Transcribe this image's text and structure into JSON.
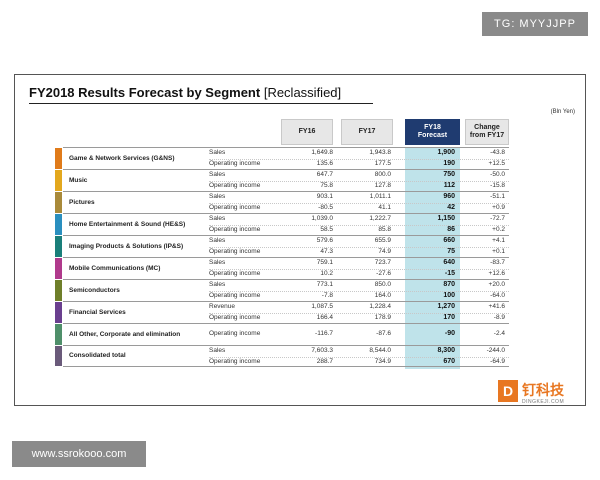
{
  "watermark_top": "TG: MYYJJPP",
  "watermark_bottom": "www.ssrokooo.com",
  "title_main": "FY2018 Results Forecast by Segment",
  "title_sub": "[Reclassified]",
  "unit": "(Bln Yen)",
  "headers": {
    "fy16": "FY16",
    "fy17": "FY17",
    "fy18_line1": "FY18",
    "fy18_line2": "Forecast",
    "change_line1": "Change",
    "change_line2": "from FY17"
  },
  "colors": {
    "forecast_header": "#1f3b70",
    "forecast_column": "#bfe3ea",
    "logo": "#e87722"
  },
  "segments": [
    {
      "name": "Game & Network Services (G&NS)",
      "color": "#e07b1a",
      "rows": [
        {
          "label": "Sales",
          "fy16": "1,649.8",
          "fy17": "1,943.8",
          "fy18": "1,900",
          "change": "-43.8"
        },
        {
          "label": "Operating income",
          "fy16": "135.6",
          "fy17": "177.5",
          "fy18": "190",
          "change": "+12.5"
        }
      ]
    },
    {
      "name": "Music",
      "color": "#e3a81e",
      "rows": [
        {
          "label": "Sales",
          "fy16": "647.7",
          "fy17": "800.0",
          "fy18": "750",
          "change": "-50.0"
        },
        {
          "label": "Operating income",
          "fy16": "75.8",
          "fy17": "127.8",
          "fy18": "112",
          "change": "-15.8"
        }
      ]
    },
    {
      "name": "Pictures",
      "color": "#a98a3a",
      "rows": [
        {
          "label": "Sales",
          "fy16": "903.1",
          "fy17": "1,011.1",
          "fy18": "960",
          "change": "-51.1"
        },
        {
          "label": "Operating income",
          "fy16": "-80.5",
          "fy17": "41.1",
          "fy18": "42",
          "change": "+0.9"
        }
      ]
    },
    {
      "name": "Home Entertainment & Sound (HE&S)",
      "color": "#2a8fbf",
      "rows": [
        {
          "label": "Sales",
          "fy16": "1,039.0",
          "fy17": "1,222.7",
          "fy18": "1,150",
          "change": "-72.7"
        },
        {
          "label": "Operating income",
          "fy16": "58.5",
          "fy17": "85.8",
          "fy18": "86",
          "change": "+0.2"
        }
      ]
    },
    {
      "name": "Imaging Products & Solutions (IP&S)",
      "color": "#1a7f7a",
      "rows": [
        {
          "label": "Sales",
          "fy16": "579.6",
          "fy17": "655.9",
          "fy18": "660",
          "change": "+4.1"
        },
        {
          "label": "Operating income",
          "fy16": "47.3",
          "fy17": "74.9",
          "fy18": "75",
          "change": "+0.1"
        }
      ]
    },
    {
      "name": "Mobile Communications (MC)",
      "color": "#b03a8c",
      "rows": [
        {
          "label": "Sales",
          "fy16": "759.1",
          "fy17": "723.7",
          "fy18": "640",
          "change": "-83.7"
        },
        {
          "label": "Operating income",
          "fy16": "10.2",
          "fy17": "-27.6",
          "fy18": "-15",
          "change": "+12.6"
        }
      ]
    },
    {
      "name": "Semiconductors",
      "color": "#6f7f2a",
      "rows": [
        {
          "label": "Sales",
          "fy16": "773.1",
          "fy17": "850.0",
          "fy18": "870",
          "change": "+20.0"
        },
        {
          "label": "Operating income",
          "fy16": "-7.8",
          "fy17": "164.0",
          "fy18": "100",
          "change": "-64.0"
        }
      ]
    },
    {
      "name": "Financial Services",
      "color": "#6a3f8f",
      "rows": [
        {
          "label": "Revenue",
          "fy16": "1,087.5",
          "fy17": "1,228.4",
          "fy18": "1,270",
          "change": "+41.6"
        },
        {
          "label": "Operating income",
          "fy16": "166.4",
          "fy17": "178.9",
          "fy18": "170",
          "change": "-8.9"
        }
      ]
    },
    {
      "name": "All Other, Corporate and elimination",
      "color": "#4f8f6a",
      "rows": [
        {
          "label": "Operating income",
          "fy16": "-116.7",
          "fy17": "-87.6",
          "fy18": "-90",
          "change": "-2.4"
        }
      ]
    },
    {
      "name": "Consolidated total",
      "color": "#6a5a7a",
      "rows": [
        {
          "label": "Sales",
          "fy16": "7,603.3",
          "fy17": "8,544.0",
          "fy18": "8,300",
          "change": "-244.0"
        },
        {
          "label": "Operating income",
          "fy16": "288.7",
          "fy17": "734.9",
          "fy18": "670",
          "change": "-64.9"
        }
      ]
    }
  ],
  "logo": {
    "letter": "D",
    "chinese": "钉科技",
    "url": "DINGKEJI.COM"
  }
}
